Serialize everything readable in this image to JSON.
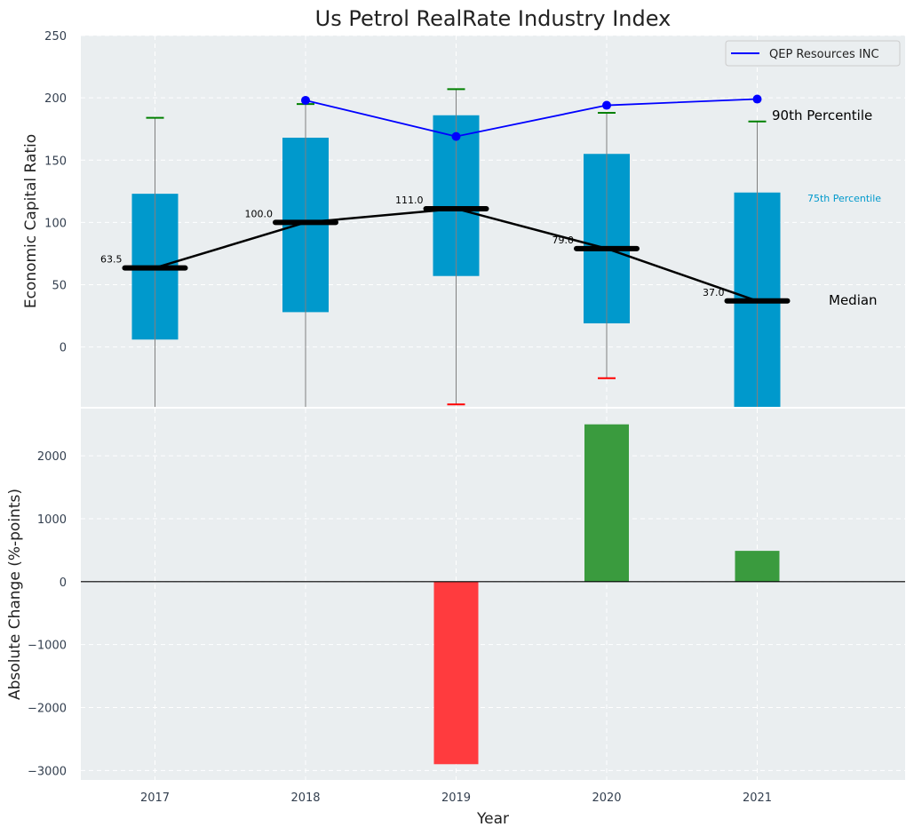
{
  "chart_data": [
    {
      "type": "box",
      "title": "Us Petrol RealRate Industry Index",
      "ylabel": "Economic Capital Ratio",
      "ylim": [
        -48,
        250
      ],
      "yticks": [
        0,
        50,
        100,
        150,
        200,
        250
      ],
      "categories": [
        "2017",
        "2018",
        "2019",
        "2020",
        "2021"
      ],
      "boxes": [
        {
          "year": "2017",
          "q1": 6,
          "q3": 123,
          "median": 63.5,
          "whisker_low": -48,
          "whisker_high": 184,
          "low_cap": null
        },
        {
          "year": "2018",
          "q1": 28,
          "q3": 168,
          "median": 100.0,
          "whisker_low": -48,
          "whisker_high": 195,
          "low_cap": null
        },
        {
          "year": "2019",
          "q1": 57,
          "q3": 186,
          "median": 111.0,
          "whisker_low": -46,
          "whisker_high": 207,
          "low_cap": -46
        },
        {
          "year": "2020",
          "q1": 19,
          "q3": 155,
          "median": 79.0,
          "whisker_low": -25,
          "whisker_high": 188,
          "low_cap": -25
        },
        {
          "year": "2021",
          "q1": -48,
          "q3": 124,
          "median": 37.0,
          "whisker_low": -48,
          "whisker_high": 181,
          "low_cap": null
        }
      ],
      "median_labels": [
        "63.5",
        "100.0",
        "111.0",
        "79.0",
        "37.0"
      ],
      "company_series": {
        "name": "QEP Resources INC",
        "x": [
          "2018",
          "2019",
          "2020",
          "2021"
        ],
        "values": [
          198,
          169,
          194,
          199
        ]
      },
      "annotations": {
        "p90": "90th Percentile",
        "p75": "75th Percentile",
        "median": "Median"
      },
      "legend": [
        "QEP Resources INC"
      ],
      "colors": {
        "box": "#0099cc",
        "median": "#000000",
        "company": "#0000ff",
        "high_cap": "#008000",
        "low_cap": "#ff0000",
        "whisker": "#808080",
        "plot_bg": "#eaeef0",
        "grid": "#ffffff"
      }
    },
    {
      "type": "bar",
      "ylabel": "Absolute Change (%-points)",
      "xlabel": "Year",
      "ylim": [
        -3150,
        2750
      ],
      "yticks": [
        -3000,
        -2000,
        -1000,
        0,
        1000,
        2000
      ],
      "categories": [
        "2017",
        "2018",
        "2019",
        "2020",
        "2021"
      ],
      "values": [
        0,
        0,
        -2900,
        2500,
        490
      ],
      "colors": {
        "positive": "#3a9b3e",
        "negative": "#ff3b3e",
        "zero_line": "#000000"
      }
    }
  ]
}
